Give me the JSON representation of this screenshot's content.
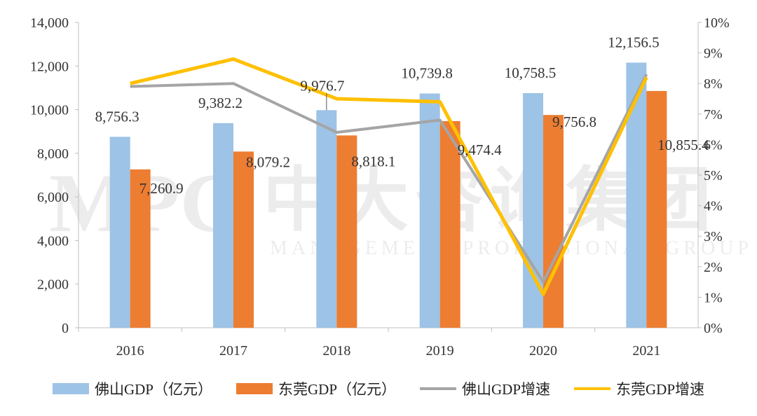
{
  "chart_data": {
    "type": "bar",
    "categories": [
      "2016",
      "2017",
      "2018",
      "2019",
      "2020",
      "2021"
    ],
    "series": [
      {
        "name": "佛山GDP（亿元）",
        "type": "bar",
        "axis": "left",
        "color": "#9dc3e6",
        "values": [
          8756.3,
          9382.2,
          9976.7,
          10739.8,
          10758.5,
          12156.5
        ],
        "labels": [
          "8,756.3",
          "9,382.2",
          "9,976.7",
          "10,739.8",
          "10,758.5",
          "12,156.5"
        ]
      },
      {
        "name": "东莞GDP（亿元）",
        "type": "bar",
        "axis": "left",
        "color": "#ed7d31",
        "values": [
          7260.9,
          8079.2,
          8818.1,
          9474.4,
          9756.8,
          10855.4
        ],
        "labels": [
          "7,260.9",
          "8,079.2",
          "8,818.1",
          "9,474.4",
          "9,756.8",
          "10,855.4"
        ]
      },
      {
        "name": "佛山GDP增速",
        "type": "line",
        "axis": "right",
        "color": "#a5a5a5",
        "values": [
          7.9,
          8.0,
          6.4,
          6.8,
          1.5,
          8.3
        ]
      },
      {
        "name": "东莞GDP增速",
        "type": "line",
        "axis": "right",
        "color": "#ffc000",
        "values": [
          8.0,
          8.8,
          7.5,
          7.4,
          1.1,
          8.2
        ]
      }
    ],
    "ylim": [
      0,
      14000
    ],
    "yticks": [
      "0",
      "2,000",
      "4,000",
      "6,000",
      "8,000",
      "10,000",
      "12,000",
      "14,000"
    ],
    "y2lim": [
      0,
      10
    ],
    "y2ticks": [
      "0%",
      "1%",
      "2%",
      "3%",
      "4%",
      "5%",
      "6%",
      "7%",
      "8%",
      "9%",
      "10%"
    ],
    "grid": false,
    "legend": "bottom"
  },
  "watermark": {
    "logo": "MPG",
    "cn": "中大咨询集团",
    "en": "MANAGEMENT PROFESSIONAL GROUP"
  }
}
